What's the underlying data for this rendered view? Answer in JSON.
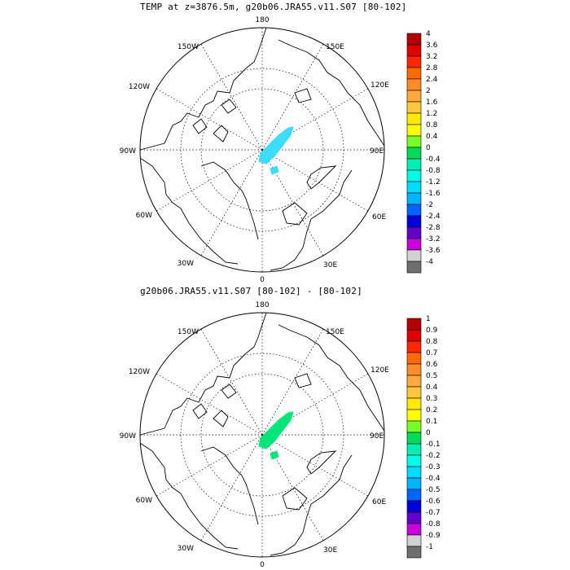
{
  "panels": [
    {
      "title": "TEMP at z=3876.5m, g20b06.JRA55.v11.S07 [80-102]",
      "longitude_labels": [
        "180",
        "150E",
        "120E",
        "90E",
        "60E",
        "30E",
        "0",
        "30W",
        "60W",
        "90W",
        "120W",
        "150W"
      ],
      "colorbar": {
        "levels": [
          "4",
          "3.6",
          "3.2",
          "2.8",
          "2.4",
          "2",
          "1.6",
          "1.2",
          "0.8",
          "0.4",
          "0",
          "-0.4",
          "-0.8",
          "-1.2",
          "-1.6",
          "-2",
          "-2.4",
          "-2.8",
          "-3.2",
          "-3.6",
          "-4"
        ],
        "colors": [
          "#b40000",
          "#e10000",
          "#ff2800",
          "#ff6a00",
          "#ff8c28",
          "#ffaa3c",
          "#ffc83c",
          "#ffeb00",
          "#ffff00",
          "#78ff28",
          "#00dc5a",
          "#00f0b4",
          "#00ffe6",
          "#00dcff",
          "#00b4ff",
          "#0064ff",
          "#0000dc",
          "#6400c8",
          "#c800dc",
          "#d2d2d2",
          "#6e6e6e"
        ]
      },
      "blob_color": "#3cdcff"
    },
    {
      "title": "g20b06.JRA55.v11.S07 [80-102] -  [80-102]",
      "longitude_labels": [
        "180",
        "150E",
        "120E",
        "90E",
        "60E",
        "30E",
        "0",
        "30W",
        "60W",
        "90W",
        "120W",
        "150W"
      ],
      "colorbar": {
        "levels": [
          "1",
          "0.9",
          "0.8",
          "0.7",
          "0.6",
          "0.5",
          "0.4",
          "0.3",
          "0.2",
          "0.1",
          "0",
          "-0.1",
          "-0.2",
          "-0.3",
          "-0.4",
          "-0.5",
          "-0.6",
          "-0.7",
          "-0.8",
          "-0.9",
          "-1"
        ],
        "colors": [
          "#b40000",
          "#e10000",
          "#ff2800",
          "#ff6a00",
          "#ff8c28",
          "#ffaa3c",
          "#ffc83c",
          "#ffeb00",
          "#ffff00",
          "#78ff28",
          "#00dc5a",
          "#00f0b4",
          "#00ffe6",
          "#00dcff",
          "#00b4ff",
          "#0064ff",
          "#0000dc",
          "#6400c8",
          "#c800dc",
          "#d2d2d2",
          "#6e6e6e"
        ]
      },
      "blob_color": "#00e678"
    }
  ]
}
